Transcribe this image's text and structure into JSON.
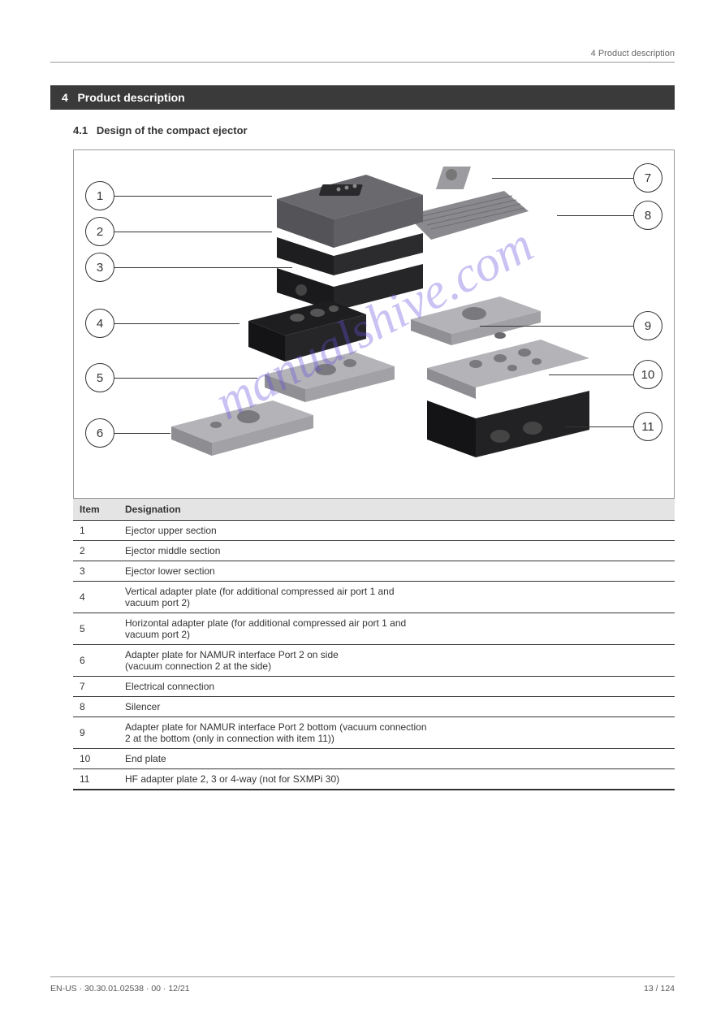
{
  "header": {
    "chapter_ref": "4 Product description"
  },
  "section": {
    "number": "4",
    "title": "Product description"
  },
  "subsection": {
    "number": "4.1",
    "title": "Design of the compact ejector"
  },
  "watermark": "manualshive.com",
  "callouts": {
    "c1": "1",
    "c2": "2",
    "c3": "3",
    "c4": "4",
    "c5": "5",
    "c6": "6",
    "c7": "7",
    "c8": "8",
    "c9": "9",
    "c10": "10",
    "c11": "11"
  },
  "table": {
    "headers": [
      "Item",
      "Designation"
    ],
    "rows": [
      [
        "1",
        "Ejector upper section"
      ],
      [
        "2",
        "Ejector middle section"
      ],
      [
        "3",
        "Ejector lower section"
      ],
      [
        "4",
        "Vertical adapter plate (for additional compressed air port 1 and\nvacuum port 2)"
      ],
      [
        "5",
        "Horizontal adapter plate (for additional compressed air port 1 and\nvacuum port 2)"
      ],
      [
        "6",
        "Adapter plate for NAMUR interface Port 2 on side\n(vacuum connection 2 at the side)"
      ],
      [
        "7",
        "Electrical connection"
      ],
      [
        "8",
        "Silencer"
      ],
      [
        "9",
        "Adapter plate for NAMUR interface Port 2 bottom (vacuum connection\n2 at the bottom (only in connection with item 11))"
      ],
      [
        "10",
        "End plate"
      ],
      [
        "11",
        "HF adapter plate 2, 3 or 4-way (not for SXMPi 30)"
      ]
    ]
  },
  "colors": {
    "dark_gray": "#5a5a5e",
    "mid_gray": "#8a8a8e",
    "light_gray": "#b4b4b8",
    "black_block": "#242426",
    "steel": "#9c9ca0"
  },
  "footer": {
    "left": "EN-US · 30.30.01.02538 · 00 · 12/21",
    "right": "13 / 124"
  }
}
